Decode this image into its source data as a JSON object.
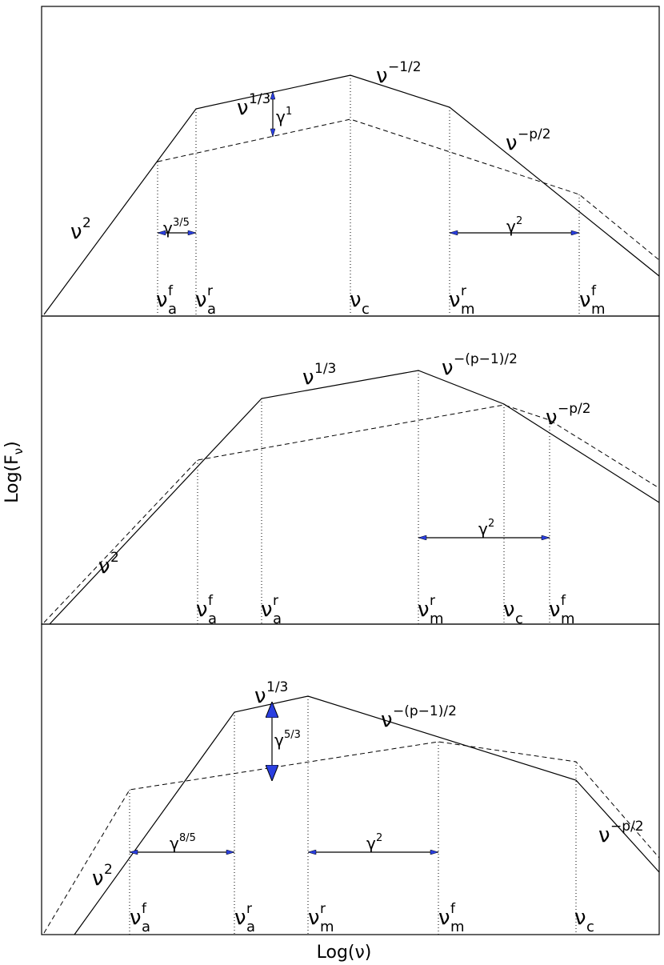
{
  "axes": {
    "y_label": [
      "Log(F",
      "ν",
      ")"
    ],
    "x_label": "Log(ν)"
  },
  "panels": [
    {
      "slopes": [
        {
          "base": "ν",
          "sup": "2"
        },
        {
          "base": "ν",
          "sup": "1/3"
        },
        {
          "base": "ν",
          "sup": "−1/2"
        },
        {
          "base": "ν",
          "sup": "−p/2"
        }
      ],
      "frequencies": [
        {
          "base": "ν",
          "sup": "f",
          "sub": "a"
        },
        {
          "base": "ν",
          "sup": "r",
          "sub": "a"
        },
        {
          "base": "ν",
          "sub": "c"
        },
        {
          "base": "ν",
          "sup": "r",
          "sub": "m"
        },
        {
          "base": "ν",
          "sup": "f",
          "sub": "m"
        }
      ],
      "ratios": [
        {
          "base": "γ",
          "sup": "3/5"
        },
        {
          "base": "γ",
          "sup": "1"
        },
        {
          "base": "γ",
          "sup": "2"
        }
      ]
    },
    {
      "slopes": [
        {
          "base": "ν",
          "sup": "2"
        },
        {
          "base": "ν",
          "sup": "1/3"
        },
        {
          "base": "ν",
          "sup": "−(p−1)/2"
        },
        {
          "base": "ν",
          "sup": "−p/2"
        }
      ],
      "frequencies": [
        {
          "base": "ν",
          "sup": "f",
          "sub": "a"
        },
        {
          "base": "ν",
          "sup": "r",
          "sub": "a"
        },
        {
          "base": "ν",
          "sup": "r",
          "sub": "m"
        },
        {
          "base": "ν",
          "sub": "c"
        },
        {
          "base": "ν",
          "sup": "f",
          "sub": "m"
        }
      ],
      "ratios": [
        {
          "base": "γ",
          "sup": "2"
        }
      ]
    },
    {
      "slopes": [
        {
          "base": "ν",
          "sup": "2"
        },
        {
          "base": "ν",
          "sup": "1/3"
        },
        {
          "base": "ν",
          "sup": "−(p−1)/2"
        },
        {
          "base": "ν",
          "sup": "−p/2"
        }
      ],
      "frequencies": [
        {
          "base": "ν",
          "sup": "f",
          "sub": "a"
        },
        {
          "base": "ν",
          "sup": "r",
          "sub": "a"
        },
        {
          "base": "ν",
          "sup": "r",
          "sub": "m"
        },
        {
          "base": "ν",
          "sup": "f",
          "sub": "m"
        },
        {
          "base": "ν",
          "sub": "c"
        }
      ],
      "ratios": [
        {
          "base": "γ",
          "sup": "8/5"
        },
        {
          "base": "γ",
          "sup": "5/3"
        },
        {
          "base": "γ",
          "sup": "2"
        }
      ]
    }
  ]
}
